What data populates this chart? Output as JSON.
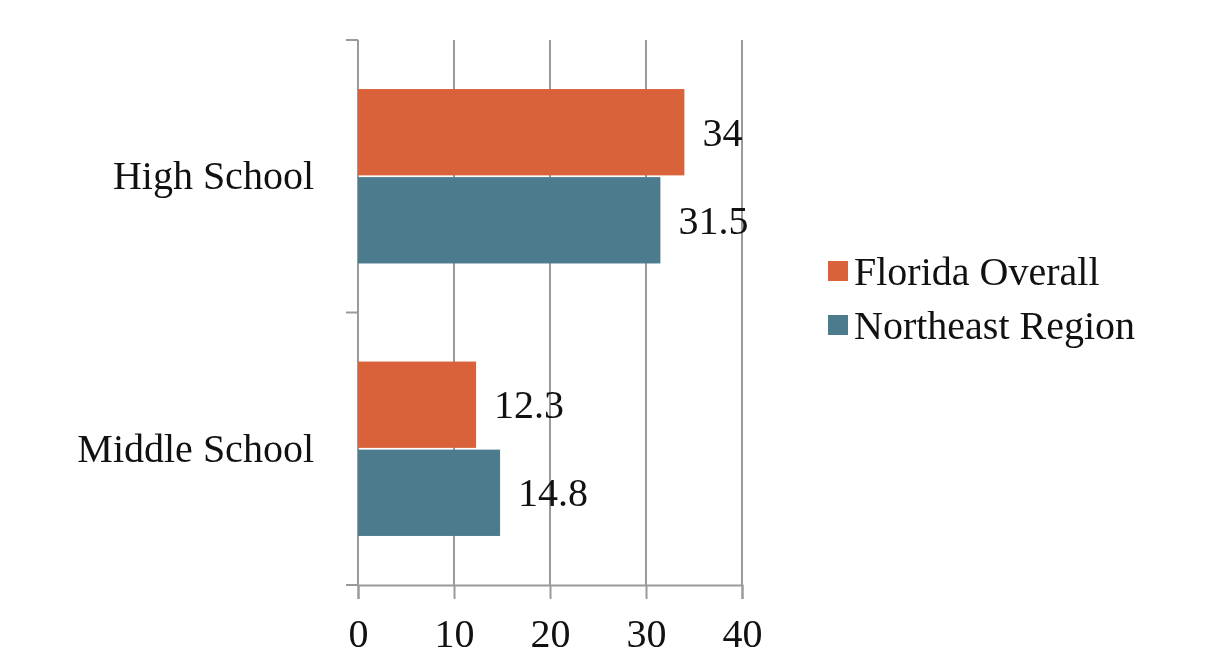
{
  "chart_data": {
    "type": "bar",
    "orientation": "horizontal",
    "categories": [
      "High School",
      "Middle School"
    ],
    "series": [
      {
        "name": "Florida Overall",
        "color": "#d9623b",
        "values": [
          34,
          12.3
        ]
      },
      {
        "name": "Northeast Region",
        "color": "#4b7b8d",
        "values": [
          31.5,
          14.8
        ]
      }
    ],
    "xlim": [
      0,
      40
    ],
    "xticks": [
      0,
      10,
      20,
      30,
      40
    ],
    "grid": "x",
    "legend": "right",
    "data_labels": true
  }
}
